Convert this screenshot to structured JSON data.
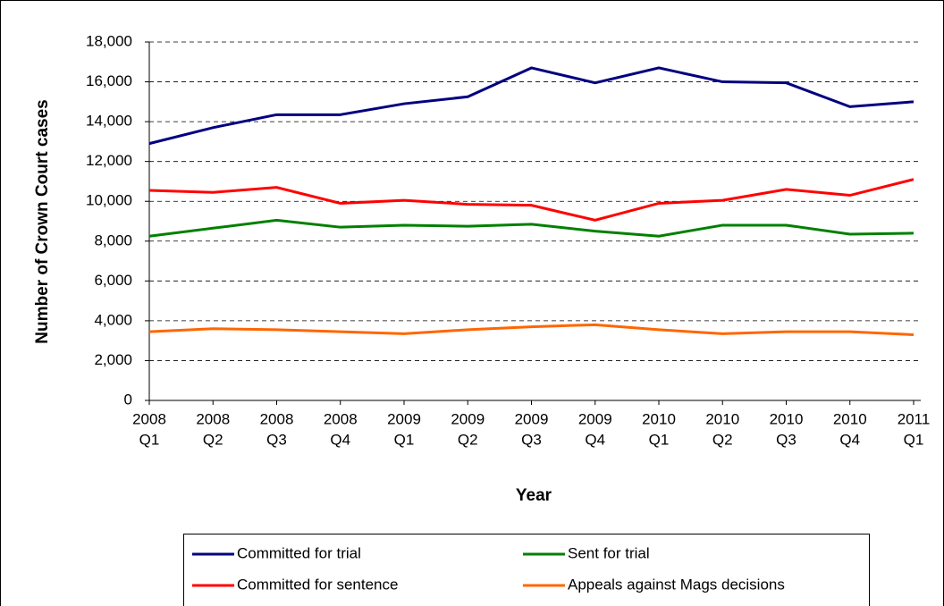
{
  "chart_data": {
    "type": "line",
    "x_label": "Year",
    "y_label": "Number of Crown Court cases",
    "categories": [
      [
        "2008",
        "Q1"
      ],
      [
        "2008",
        "Q2"
      ],
      [
        "2008",
        "Q3"
      ],
      [
        "2008",
        "Q4"
      ],
      [
        "2009",
        "Q1"
      ],
      [
        "2009",
        "Q2"
      ],
      [
        "2009",
        "Q3"
      ],
      [
        "2009",
        "Q4"
      ],
      [
        "2010",
        "Q1"
      ],
      [
        "2010",
        "Q2"
      ],
      [
        "2010",
        "Q3"
      ],
      [
        "2010",
        "Q4"
      ],
      [
        "2011",
        "Q1"
      ]
    ],
    "series": [
      {
        "name": "Committed for trial",
        "color": "#000080",
        "values": [
          12900,
          13700,
          14350,
          14350,
          14900,
          15250,
          16700,
          15950,
          16700,
          16000,
          15950,
          14750,
          15000
        ]
      },
      {
        "name": "Sent for trial",
        "color": "#008000",
        "values": [
          8250,
          8650,
          9050,
          8700,
          8800,
          8750,
          8850,
          8500,
          8250,
          8800,
          8800,
          8350,
          8400
        ]
      },
      {
        "name": "Committed for sentence",
        "color": "#ff0000",
        "values": [
          10550,
          10450,
          10700,
          9900,
          10050,
          9850,
          9800,
          9050,
          9900,
          10050,
          10600,
          10300,
          11100
        ]
      },
      {
        "name": "Appeals against Mags decisions",
        "color": "#ff6600",
        "values": [
          3450,
          3600,
          3550,
          3450,
          3350,
          3550,
          3700,
          3800,
          3550,
          3350,
          3450,
          3450,
          3300
        ]
      }
    ],
    "ylim": [
      0,
      18000
    ],
    "yticks": [
      0,
      {
        "value": 2000,
        "label": "2,000"
      },
      {
        "value": 4000,
        "label": "4,000"
      },
      {
        "value": 6000,
        "label": "6,000"
      },
      {
        "value": 8000,
        "label": "8,000"
      },
      {
        "value": 10000,
        "label": "10,000"
      },
      {
        "value": 12000,
        "label": "12,000"
      },
      {
        "value": 14000,
        "label": "14,000"
      },
      {
        "value": 16000,
        "label": "16,000"
      },
      {
        "value": 18000,
        "label": "18,000"
      }
    ],
    "grid": true
  }
}
